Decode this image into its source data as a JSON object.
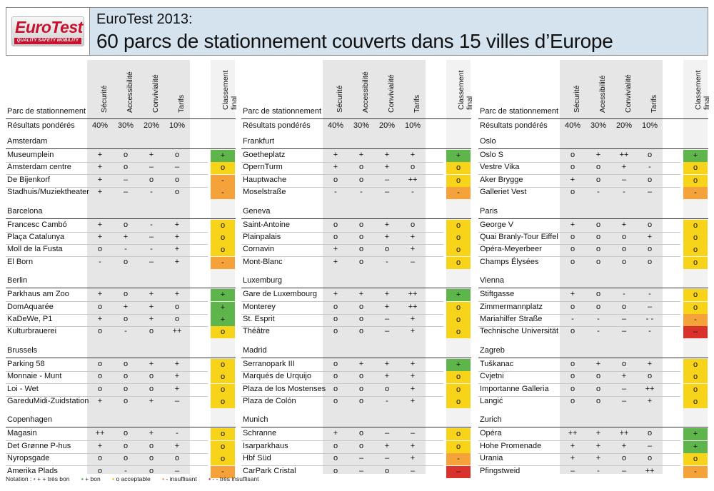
{
  "header": {
    "logo_word": "EuroTest",
    "logo_tagline": "QUALITY SAFETY MOBILITY",
    "title": "EuroTest 2013:",
    "subtitle": "60 parcs de stationnement couverts dans 15 villes d’Europe"
  },
  "colors": {
    "green": "#5db54b",
    "yellow": "#f7d31a",
    "orange": "#f6a23a",
    "red": "#d9312b",
    "header_bg": "#d4e3ee"
  },
  "sections": [
    {
      "parc_header": "Parc de stationnement",
      "criteria": [
        "Sécurité",
        "Accessibilité",
        "Convivialité",
        "Tarifs"
      ],
      "final_header": "Classement\nfinal",
      "weights_label": "Résultats pondérés",
      "weights": [
        "40%",
        "30%",
        "20%",
        "10%"
      ],
      "cities": [
        {
          "name": "Amsterdam",
          "rows": [
            {
              "name": "Museumplein",
              "scores": [
                "+",
                "o",
                "+",
                "o"
              ],
              "final": "+"
            },
            {
              "name": "Amsterdam centre",
              "scores": [
                "+",
                "o",
                "–",
                "–"
              ],
              "final": "o"
            },
            {
              "name": "De Bijenkorf",
              "scores": [
                "+",
                "–",
                "o",
                "o"
              ],
              "final": "-"
            },
            {
              "name": "Stadhuis/Muziektheater",
              "scores": [
                "+",
                "–",
                "-",
                "o"
              ],
              "final": "-"
            }
          ]
        },
        {
          "name": "Barcelona",
          "rows": [
            {
              "name": "Francesc Cambó",
              "scores": [
                "+",
                "o",
                "-",
                "+"
              ],
              "final": "o"
            },
            {
              "name": "Plaça Catalunya",
              "scores": [
                "+",
                "+",
                "–",
                "+"
              ],
              "final": "o"
            },
            {
              "name": "Moll de la Fusta",
              "scores": [
                "o",
                "-",
                "-",
                "+"
              ],
              "final": "o"
            },
            {
              "name": "El Born",
              "scores": [
                "-",
                "o",
                "–",
                "+"
              ],
              "final": "-"
            }
          ]
        },
        {
          "name": "Berlin",
          "rows": [
            {
              "name": "Parkhaus am Zoo",
              "scores": [
                "+",
                "o",
                "+",
                "+"
              ],
              "final": "+"
            },
            {
              "name": "DomAquarée",
              "scores": [
                "o",
                "+",
                "+",
                "o"
              ],
              "final": "+"
            },
            {
              "name": "KaDeWe, P1",
              "scores": [
                "+",
                "o",
                "+",
                "o"
              ],
              "final": "+"
            },
            {
              "name": "Kulturbrauerei",
              "scores": [
                "o",
                "-",
                "o",
                "++"
              ],
              "final": "o"
            }
          ]
        },
        {
          "name": "Brussels",
          "rows": [
            {
              "name": "Parking 58",
              "scores": [
                "o",
                "o",
                "+",
                "+"
              ],
              "final": "o"
            },
            {
              "name": "Monnaie - Munt",
              "scores": [
                "o",
                "o",
                "o",
                "+"
              ],
              "final": "o"
            },
            {
              "name": "Loi - Wet",
              "scores": [
                "o",
                "o",
                "o",
                "+"
              ],
              "final": "o"
            },
            {
              "name": "GareduMidi-Zuidstation",
              "scores": [
                "+",
                "o",
                "+",
                "–"
              ],
              "final": "o"
            }
          ]
        },
        {
          "name": "Copenhagen",
          "rows": [
            {
              "name": "Magasin",
              "scores": [
                "++",
                "o",
                "+",
                "-"
              ],
              "final": "o"
            },
            {
              "name": "Det Grønne P-hus",
              "scores": [
                "+",
                "o",
                "o",
                "+"
              ],
              "final": "o"
            },
            {
              "name": "Nyropsgade",
              "scores": [
                "o",
                "o",
                "o",
                "o"
              ],
              "final": "o"
            },
            {
              "name": "Amerika Plads",
              "scores": [
                "o",
                "-",
                "o",
                "–"
              ],
              "final": "-"
            }
          ]
        }
      ]
    },
    {
      "parc_header": "Parc de stationnement",
      "criteria": [
        "Sécurité",
        "Accessibilité",
        "Convivialité",
        "Tarifs"
      ],
      "final_header": "Classement\nfinal",
      "weights_label": "Résultats pondérés",
      "weights": [
        "40%",
        "30%",
        "20%",
        "10%"
      ],
      "cities": [
        {
          "name": "Frankfurt",
          "rows": [
            {
              "name": "Goetheplatz",
              "scores": [
                "+",
                "+",
                "+",
                "+"
              ],
              "final": "+"
            },
            {
              "name": "OpernTurm",
              "scores": [
                "+",
                "o",
                "+",
                "o"
              ],
              "final": "o"
            },
            {
              "name": "Hauptwache",
              "scores": [
                "o",
                "o",
                "–",
                "++"
              ],
              "final": "o"
            },
            {
              "name": "Moselstraße",
              "scores": [
                "-",
                "-",
                "–",
                "-"
              ],
              "final": "-"
            }
          ]
        },
        {
          "name": "Geneva",
          "rows": [
            {
              "name": "Saint-Antoine",
              "scores": [
                "o",
                "o",
                "+",
                "o"
              ],
              "final": "o"
            },
            {
              "name": "Plainpalais",
              "scores": [
                "o",
                "o",
                "+",
                "+"
              ],
              "final": "o"
            },
            {
              "name": "Cornavin",
              "scores": [
                "+",
                "o",
                "o",
                "+"
              ],
              "final": "o"
            },
            {
              "name": "Mont-Blanc",
              "scores": [
                "+",
                "o",
                "-",
                "–"
              ],
              "final": "o"
            }
          ]
        },
        {
          "name": "Luxemburg",
          "rows": [
            {
              "name": "Gare de Luxembourg",
              "scores": [
                "+",
                "+",
                "+",
                "++"
              ],
              "final": "+"
            },
            {
              "name": "Monterey",
              "scores": [
                "o",
                "o",
                "+",
                "++"
              ],
              "final": "o"
            },
            {
              "name": "St. Esprit",
              "scores": [
                "o",
                "o",
                "–",
                "+"
              ],
              "final": "o"
            },
            {
              "name": "Théâtre",
              "scores": [
                "o",
                "o",
                "–",
                "+"
              ],
              "final": "o"
            }
          ]
        },
        {
          "name": "Madrid",
          "rows": [
            {
              "name": "Serranopark III",
              "scores": [
                "o",
                "+",
                "+",
                "+"
              ],
              "final": "+"
            },
            {
              "name": "Marqués de Urquijo",
              "scores": [
                "o",
                "o",
                "+",
                "+"
              ],
              "final": "o"
            },
            {
              "name": "Plaza de los Mostenses",
              "scores": [
                "o",
                "o",
                "o",
                "+"
              ],
              "final": "o"
            },
            {
              "name": "Plaza de Colón",
              "scores": [
                "o",
                "o",
                "-",
                "+"
              ],
              "final": "o"
            }
          ]
        },
        {
          "name": "Munich",
          "rows": [
            {
              "name": "Schranne",
              "scores": [
                "+",
                "o",
                "–",
                "–"
              ],
              "final": "o"
            },
            {
              "name": "Isarparkhaus",
              "scores": [
                "o",
                "o",
                "+",
                "+"
              ],
              "final": "o"
            },
            {
              "name": "Hbf Süd",
              "scores": [
                "o",
                "–",
                "–",
                "+"
              ],
              "final": "-"
            },
            {
              "name": "CarPark Cristal",
              "scores": [
                "o",
                "–",
                "o",
                "–"
              ],
              "final": "–"
            }
          ]
        }
      ]
    },
    {
      "parc_header": "Parc de stationnement",
      "criteria": [
        "Sécurité",
        "Acessibilité",
        "Convivialité",
        "Tarifs"
      ],
      "final_header": "Classement\nfinal",
      "weights_label": "Résultats pondérés",
      "weights": [
        "40%",
        "30%",
        "20%",
        "10%"
      ],
      "cities": [
        {
          "name": "Oslo",
          "rows": [
            {
              "name": "Oslo S",
              "scores": [
                "o",
                "+",
                "++",
                "o"
              ],
              "final": "+"
            },
            {
              "name": "Vestre Vika",
              "scores": [
                "o",
                "o",
                "+",
                "-"
              ],
              "final": "o"
            },
            {
              "name": "Aker Brygge",
              "scores": [
                "+",
                "o",
                "–",
                "o"
              ],
              "final": "o"
            },
            {
              "name": "Galleriet Vest",
              "scores": [
                "o",
                "-",
                "-",
                "–"
              ],
              "final": "-"
            }
          ]
        },
        {
          "name": "Paris",
          "rows": [
            {
              "name": "George V",
              "scores": [
                "+",
                "o",
                "+",
                "o"
              ],
              "final": "o"
            },
            {
              "name": "Quai Branly-Tour Eiffel",
              "scores": [
                "o",
                "o",
                "o",
                "+"
              ],
              "final": "o"
            },
            {
              "name": "Opéra-Meyerbeer",
              "scores": [
                "o",
                "o",
                "o",
                "o"
              ],
              "final": "o"
            },
            {
              "name": "Champs Élysées",
              "scores": [
                "o",
                "o",
                "o",
                "o"
              ],
              "final": "o"
            }
          ]
        },
        {
          "name": "Vienna",
          "rows": [
            {
              "name": "Stiftgasse",
              "scores": [
                "+",
                "o",
                "-",
                "-"
              ],
              "final": "o"
            },
            {
              "name": "Zimmermannplatz",
              "scores": [
                "o",
                "o",
                "o",
                "–"
              ],
              "final": "o"
            },
            {
              "name": "Mariahilfer Straße",
              "scores": [
                "-",
                "-",
                "–",
                "- -"
              ],
              "final": "-"
            },
            {
              "name": "Technische Universität",
              "scores": [
                "o",
                "-",
                "–",
                "-"
              ],
              "final": "–"
            }
          ]
        },
        {
          "name": "Zagreb",
          "rows": [
            {
              "name": "Tuškanac",
              "scores": [
                "o",
                "+",
                "o",
                "+"
              ],
              "final": "o"
            },
            {
              "name": "Cvjetni",
              "scores": [
                "o",
                "o",
                "+",
                "o"
              ],
              "final": "o"
            },
            {
              "name": "Importanne Galleria",
              "scores": [
                "o",
                "o",
                "–",
                "++"
              ],
              "final": "o"
            },
            {
              "name": "Langić",
              "scores": [
                "o",
                "o",
                "–",
                "+"
              ],
              "final": "o"
            }
          ]
        },
        {
          "name": "Zurich",
          "rows": [
            {
              "name": "Opéra",
              "scores": [
                "++",
                "+",
                "++",
                "o"
              ],
              "final": "+"
            },
            {
              "name": "Hohe Promenade",
              "scores": [
                "+",
                "+",
                "+",
                "–"
              ],
              "final": "+"
            },
            {
              "name": "Urania",
              "scores": [
                "+",
                "+",
                "o",
                "o"
              ],
              "final": "o"
            },
            {
              "name": "Pfingstweid",
              "scores": [
                "–",
                "-",
                "–",
                "++"
              ],
              "final": "-"
            }
          ]
        }
      ]
    }
  ],
  "legend": {
    "label": "Notation :",
    "items": [
      {
        "text": "+ + très bon",
        "color": "green"
      },
      {
        "text": "+ bon",
        "color": "green"
      },
      {
        "text": "o acceptable",
        "color": "yellow"
      },
      {
        "text": "- insuffisant",
        "color": "orange"
      },
      {
        "text": "- - très insuffisant",
        "color": "red"
      }
    ]
  }
}
